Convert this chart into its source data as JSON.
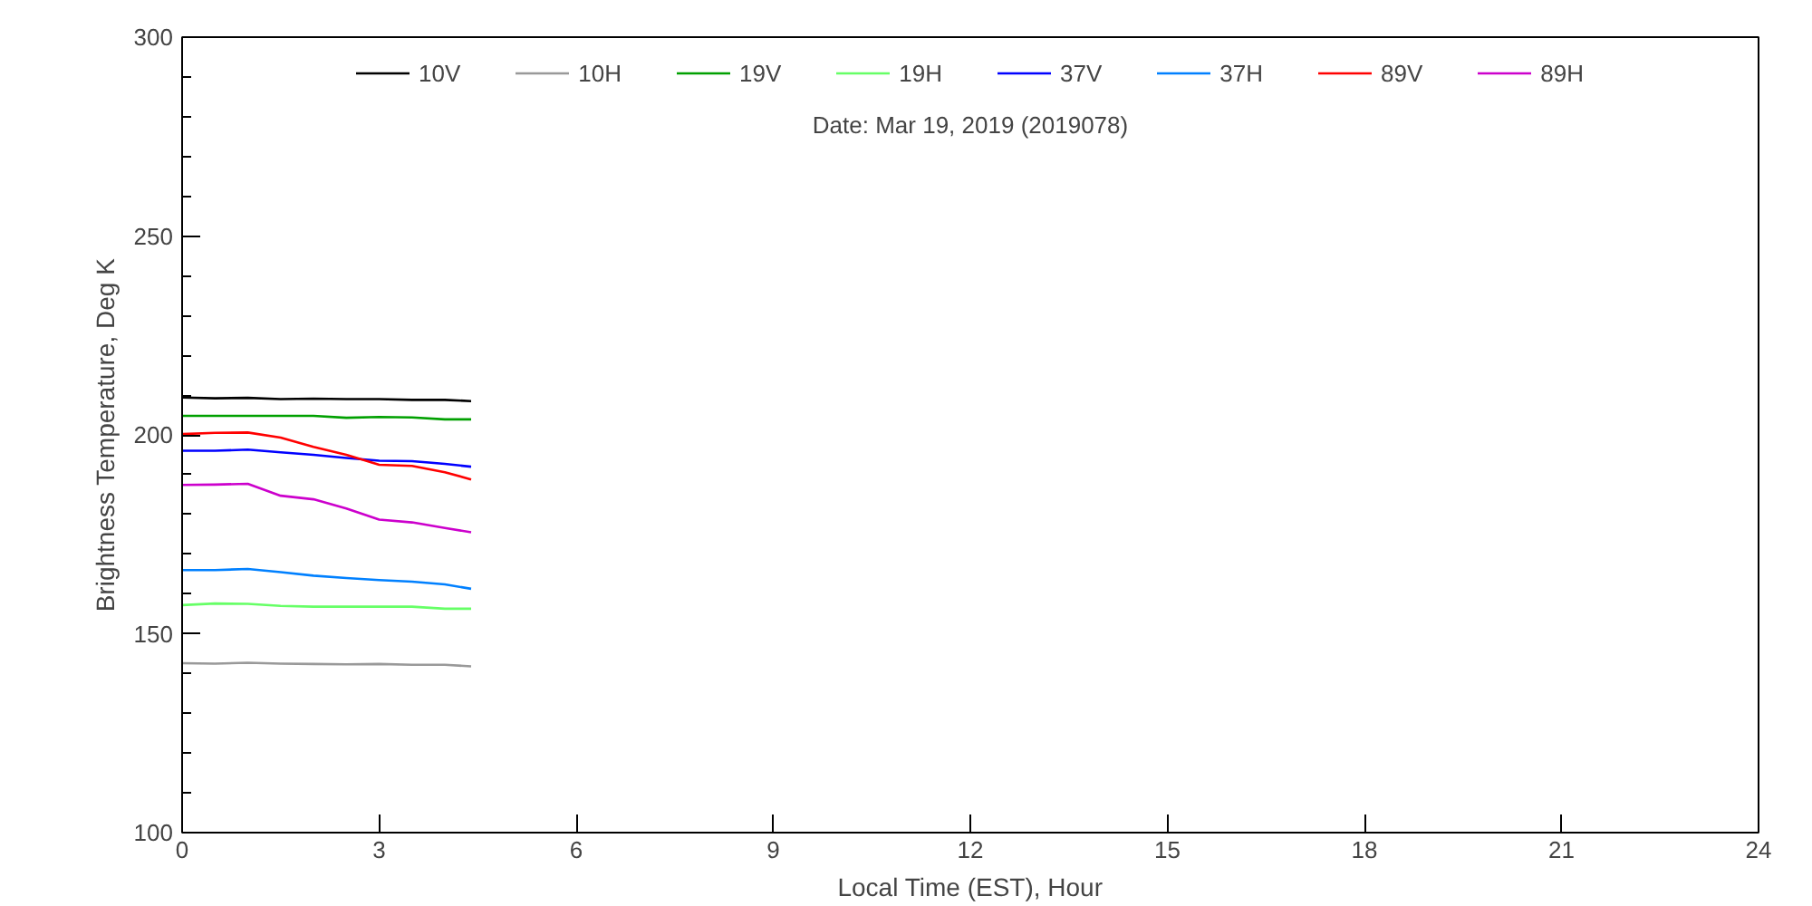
{
  "chart_data": {
    "type": "line",
    "xlabel": "Local Time (EST), Hour",
    "ylabel": "Brightness Temperature, Deg K",
    "annotations": [
      "Date: Mar 19, 2019 (2019078)"
    ],
    "x": [
      0,
      0.5,
      1,
      1.5,
      2,
      2.5,
      3,
      3.5,
      4,
      4.4
    ],
    "xlim": [
      0,
      24
    ],
    "xticks": [
      0,
      3,
      6,
      9,
      12,
      15,
      18,
      21,
      24
    ],
    "ylim": [
      100,
      300
    ],
    "yticks": [
      100,
      150,
      200,
      250,
      300
    ],
    "grid": false,
    "legend": "top",
    "marker": "none",
    "line_style": "solid",
    "series": [
      {
        "name": "10V",
        "color": "#000000",
        "values": [
          209.4,
          209.2,
          209.3,
          209.0,
          209.1,
          209.0,
          209.0,
          208.8,
          208.8,
          208.5
        ]
      },
      {
        "name": "10H",
        "color": "#999999",
        "values": [
          142.6,
          142.5,
          142.7,
          142.5,
          142.4,
          142.3,
          142.4,
          142.2,
          142.2,
          141.8
        ]
      },
      {
        "name": "19V",
        "color": "#00a000",
        "values": [
          204.8,
          204.8,
          204.8,
          204.8,
          204.8,
          204.3,
          204.5,
          204.4,
          203.9,
          203.9
        ]
      },
      {
        "name": "19H",
        "color": "#66ff66",
        "values": [
          157.2,
          157.6,
          157.5,
          157.0,
          156.8,
          156.8,
          156.8,
          156.8,
          156.3,
          156.3
        ]
      },
      {
        "name": "37V",
        "color": "#0000ff",
        "values": [
          196.0,
          196.0,
          196.3,
          195.6,
          195.0,
          194.2,
          193.5,
          193.4,
          192.7,
          192.0
        ]
      },
      {
        "name": "37H",
        "color": "#0080ff",
        "values": [
          166.0,
          166.0,
          166.3,
          165.5,
          164.6,
          164.0,
          163.5,
          163.1,
          162.4,
          161.3
        ]
      },
      {
        "name": "89V",
        "color": "#ff0000",
        "values": [
          200.2,
          200.5,
          200.6,
          199.3,
          197.0,
          195.0,
          192.5,
          192.2,
          190.6,
          188.8
        ]
      },
      {
        "name": "89H",
        "color": "#cc00cc",
        "values": [
          187.4,
          187.5,
          187.7,
          184.7,
          183.8,
          181.5,
          178.7,
          178.0,
          176.6,
          175.5
        ]
      }
    ]
  }
}
